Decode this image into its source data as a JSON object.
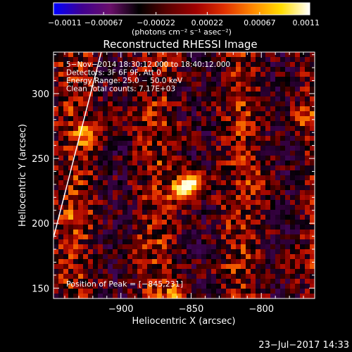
{
  "chart_data": {
    "type": "heatmap",
    "title": "Reconstructed RHESSI Image",
    "xlabel": "Heliocentric X (arcsec)",
    "ylabel": "Heliocentric Y (arcsec)",
    "xlim": [
      -948,
      -762
    ],
    "ylim": [
      142,
      332
    ],
    "xticks": [
      -900,
      -850,
      -800
    ],
    "yticks": [
      150,
      200,
      250,
      300
    ],
    "xtick_labels": [
      "−900",
      "−850",
      "−800"
    ],
    "ytick_labels": [
      "150",
      "200",
      "250",
      "300"
    ],
    "colorbar": {
      "min": -0.0011,
      "max": 0.0011,
      "ticks": [
        -0.0011,
        -0.00067,
        -0.00022,
        0.00022,
        0.00067,
        0.0011
      ],
      "tick_labels": [
        "−0.0011",
        "−0.00067",
        "−0.00022",
        "0.00022",
        "0.00067",
        "0.0011"
      ],
      "unit_label": "(photons cm⁻² s⁻¹ asec⁻²)",
      "colors": [
        "#0000ff",
        "#400090",
        "#6a0f6a",
        "#000000",
        "#5a0000",
        "#a00000",
        "#e03000",
        "#ff8800",
        "#ffdd00",
        "#ffffff"
      ]
    },
    "annotations": [
      "5−Nov−2014 18:30:12.000 to 18:40:12.000",
      "Detectors: 3F 6F 9F, Att 0",
      "Energy Range: 25.0 − 50.0 keV",
      "Clean    Total counts: 7.17E+03"
    ],
    "peak_label": "Position of Peak = [−845,231]",
    "peak": {
      "x": -845,
      "y": 231
    },
    "limb": [
      [
        -948,
        189
      ],
      [
        -914,
        332
      ]
    ],
    "sources": [
      {
        "x": -849,
        "y": 232,
        "value": 1.0
      },
      {
        "x": -857,
        "y": 224,
        "value": 0.75
      },
      {
        "x": -923,
        "y": 268,
        "value": 0.55
      },
      {
        "x": -772,
        "y": 282,
        "value": 0.55
      },
      {
        "x": -860,
        "y": 145,
        "value": 0.6
      },
      {
        "x": -905,
        "y": 285,
        "value": 0.35
      },
      {
        "x": -800,
        "y": 232,
        "value": 0.4
      },
      {
        "x": -780,
        "y": 170,
        "value": 0.4
      },
      {
        "x": -890,
        "y": 180,
        "value": 0.35
      },
      {
        "x": -930,
        "y": 205,
        "value": 0.3
      }
    ]
  },
  "timestamp": "23−Jul−2017 14:33"
}
